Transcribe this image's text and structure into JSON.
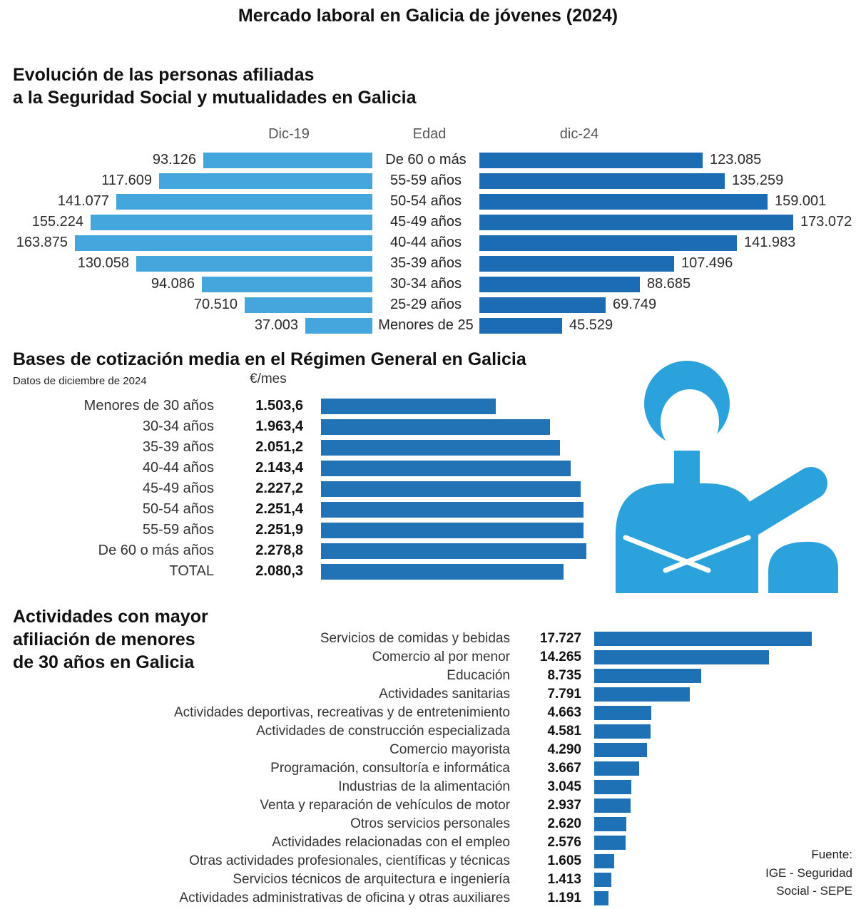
{
  "page": {
    "title": "Mercado laboral en Galicia de jóvenes (2024)",
    "source": "Fuente:\nIGE - Seguridad\nSocial - SEPE"
  },
  "colors": {
    "bar_dic19": "#45A6DE",
    "bar_dic24": "#1C6CB3",
    "bar_bases": "#2273B6",
    "bar_actividades": "#1E71B4",
    "person": "#2BA2DB"
  },
  "chart_data": [
    {
      "type": "bar",
      "orientation": "horizontal-pyramid",
      "title": "Evolución de las personas afiliadas\na la Seguridad Social y mutualidades en Galicia",
      "col_headers": {
        "left": "Dic-19",
        "center": "Edad",
        "right": "dic-24"
      },
      "categories": [
        "De 60 o más",
        "55-59 años",
        "50-54 años",
        "45-49 años",
        "40-44 años",
        "35-39 años",
        "30-34 años",
        "25-29 años",
        "Menores de 25"
      ],
      "series": [
        {
          "name": "Dic-19",
          "values": [
            93126,
            117609,
            141077,
            155224,
            163875,
            130058,
            94086,
            70510,
            37003
          ],
          "labels": [
            "93.126",
            "117.609",
            "141.077",
            "155.224",
            "163.875",
            "130.058",
            "94.086",
            "70.510",
            "37.003"
          ]
        },
        {
          "name": "dic-24",
          "values": [
            123085,
            135259,
            159001,
            173072,
            141983,
            107496,
            88685,
            69749,
            45529
          ],
          "labels": [
            "123.085",
            "135.259",
            "159.001",
            "173.072",
            "141.983",
            "107.496",
            "88.685",
            "69.749",
            "45.529"
          ]
        }
      ],
      "xlim": [
        0,
        173072
      ],
      "grid": false,
      "legend": "column headers"
    },
    {
      "type": "bar",
      "orientation": "horizontal",
      "title": "Bases de cotización media en el Régimen General en Galicia",
      "subtitle": "Datos de diciembre de 2024",
      "unit": "€/mes",
      "categories": [
        "Menores de 30 años",
        "30-34 años",
        "35-39 años",
        "40-44 años",
        "45-49 años",
        "50-54 años",
        "55-59 años",
        "De 60 o más años",
        "TOTAL"
      ],
      "values": [
        1503.6,
        1963.4,
        2051.2,
        2143.4,
        2227.2,
        2251.4,
        2251.9,
        2278.8,
        2080.3
      ],
      "labels": [
        "1.503,6",
        "1.963,4",
        "2.051,2",
        "2.143,4",
        "2.227,2",
        "2.251,4",
        "2.251,9",
        "2.278,8",
        "2.080,3"
      ],
      "xlim": [
        0,
        2278.8
      ],
      "grid": false
    },
    {
      "type": "bar",
      "orientation": "horizontal",
      "title": "Actividades con mayor\nafiliación de menores\nde 30 años en Galicia",
      "categories": [
        "Servicios de comidas y bebidas",
        "Comercio al por menor",
        "Educación",
        "Actividades sanitarias",
        "Actividades deportivas, recreativas y de entretenimiento",
        "Actividades de construcción especializada",
        "Comercio mayorista",
        "Programación, consultoría e informática",
        "Industrias de la alimentación",
        "Venta y reparación de vehículos de motor",
        "Otros servicios personales",
        "Actividades relacionadas con el empleo",
        "Otras actividades profesionales, científicas y técnicas",
        "Servicios técnicos de arquitectura e ingeniería",
        "Actividades administrativas de oficina y otras auxiliares"
      ],
      "values": [
        17727,
        14265,
        8735,
        7791,
        4663,
        4581,
        4290,
        3667,
        3045,
        2937,
        2620,
        2576,
        1605,
        1413,
        1191
      ],
      "labels": [
        "17.727",
        "14.265",
        "8.735",
        "7.791",
        "4.663",
        "4.581",
        "4.290",
        "3.667",
        "3.045",
        "2.937",
        "2.620",
        "2.576",
        "1.605",
        "1.413",
        "1.191"
      ],
      "xlim": [
        0,
        17727
      ],
      "grid": false
    }
  ]
}
